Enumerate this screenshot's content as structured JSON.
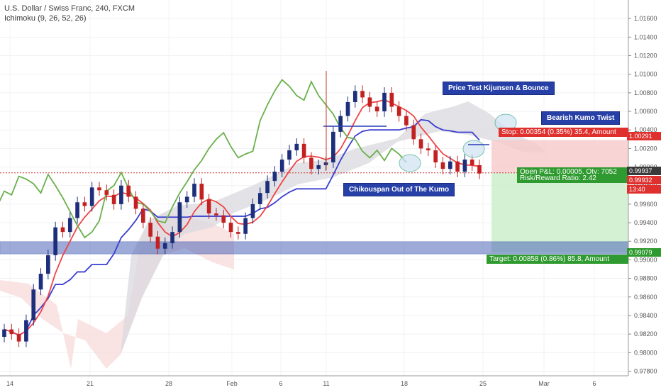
{
  "header": {
    "symbol_title": "U.S. Dollar / Swiss Franc, 240, FXCM",
    "indicator_title": "Ichimoku (9, 26, 52, 26)"
  },
  "chart_data": {
    "type": "candlestick",
    "symbol": "U.S. Dollar / Swiss Franc",
    "interval": "240",
    "source": "FXCM",
    "indicator": "Ichimoku (9, 26, 52, 26)",
    "ylim": [
      0.9775,
      1.018
    ],
    "y_ticks": [
      "1.01600",
      "1.01400",
      "1.01200",
      "1.01000",
      "1.00800",
      "1.00600",
      "1.00400",
      "1.00200",
      "1.00000",
      "0.99800",
      "0.99600",
      "0.99400",
      "0.99200",
      "0.99000",
      "0.98800",
      "0.98600",
      "0.98400",
      "0.98200",
      "0.98000",
      "0.97800"
    ],
    "x_ticks": [
      "14",
      "21",
      "28",
      "Feb",
      "6",
      "11",
      "18",
      "25",
      "Mar",
      "6"
    ],
    "series": [
      {
        "name": "Price",
        "closes": [
          0.9825,
          0.982,
          0.9812,
          0.9835,
          0.9868,
          0.9885,
          0.9905,
          0.9935,
          0.993,
          0.9945,
          0.9962,
          0.9958,
          0.9978,
          0.9975,
          0.997,
          0.996,
          0.998,
          0.9968,
          0.9955,
          0.994,
          0.9925,
          0.9912,
          0.9918,
          0.993,
          0.9962,
          0.9968,
          0.9982,
          0.9965,
          0.995,
          0.9948,
          0.994,
          0.993,
          0.9928,
          0.9945,
          0.996,
          0.9972,
          0.9985,
          0.9995,
          1.0008,
          1.0018,
          1.0025,
          1.001,
          0.9998,
          1.0002,
          1.0005,
          1.0038,
          1.0055,
          1.007,
          1.0082,
          1.0075,
          1.0065,
          1.006,
          1.008,
          1.0065,
          1.0055,
          1.0045,
          1.003,
          1.002,
          1.0018,
          1.0005,
          0.9998,
          1.0006,
          0.9995,
          1.0008,
          1.0002,
          0.9993
        ]
      },
      {
        "name": "Tenkan-sen",
        "color": "#f04444"
      },
      {
        "name": "Kijun-sen",
        "color": "#3a3ed0"
      },
      {
        "name": "Chikou span",
        "color": "#6ab04c"
      },
      {
        "name": "Kumo",
        "color": "#d3d3d8"
      }
    ],
    "annotations": [
      "Price Test Kijunsen & Bounce",
      "Bearish Kumo Twist",
      "Chikouspan Out of The Kumo"
    ],
    "position": {
      "stop_label": "Stop: 0.00354 (0.35%) 35.4, Amount",
      "open_label": "Open P&L: 0.00005, Qty: 7052",
      "risk_label": "Risk/Reward Ratio: 2.42",
      "target_label": "Target: 0.00858 (0.86%) 85.8, Amount",
      "stop_price": "1.00291",
      "entry_price": "0.99937",
      "last_price": "0.99932",
      "target_price": "0.99079",
      "countdown": "13:40"
    },
    "colors": {
      "up": "#1d2f7a",
      "down": "#c32121",
      "stop_zone": "#f8c9c9",
      "target_zone": "#c9edc9",
      "support_band": "#4f66b9"
    }
  }
}
